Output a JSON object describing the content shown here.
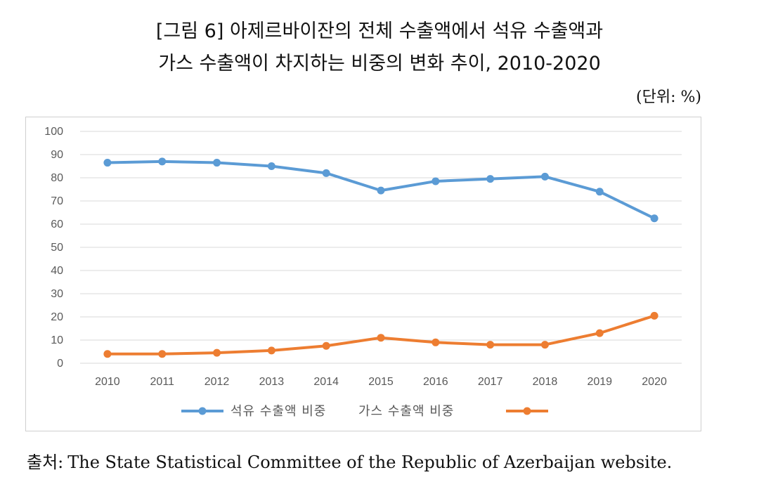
{
  "figure": {
    "title_line1": "[그림 6] 아제르바이잔의 전체 수출액에서 석유 수출액과",
    "title_line2": "가스 수출액이 차지하는 비중의 변화 추이, 2010-2020",
    "unit": "(단위: %)"
  },
  "source": {
    "label": "출처:",
    "text": "The State Statistical Committee of the Republic of Azerbaijan website."
  },
  "chart_data": {
    "type": "line",
    "categories": [
      "2010",
      "2011",
      "2012",
      "2013",
      "2014",
      "2015",
      "2016",
      "2017",
      "2018",
      "2019",
      "2020"
    ],
    "ylim": [
      0,
      100
    ],
    "yticks": [
      0,
      10,
      20,
      30,
      40,
      50,
      60,
      70,
      80,
      90,
      100
    ],
    "grid": true,
    "legend_position": "bottom",
    "series": [
      {
        "name": "석유 수출액 비중",
        "color": "#5b9bd5",
        "values": [
          86.5,
          87,
          86.5,
          85,
          82,
          74.5,
          78.5,
          79.5,
          80.5,
          74,
          62.5
        ]
      },
      {
        "name": "가스 수출액 비중",
        "color": "#ed7d31",
        "values": [
          4,
          4,
          4.5,
          5.5,
          7.5,
          11,
          9,
          8,
          8,
          13,
          20.5
        ]
      }
    ]
  }
}
